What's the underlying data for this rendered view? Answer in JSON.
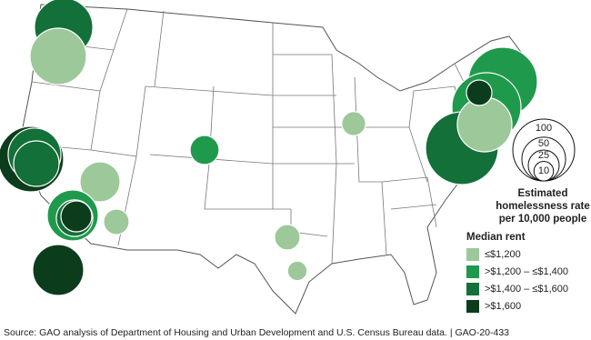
{
  "size_legend": {
    "values": [
      100,
      50,
      25,
      10
    ],
    "title": [
      "Estimated",
      "homelessness rate",
      "per 10,000 people"
    ]
  },
  "rent_legend": {
    "title": "Median rent",
    "items": [
      {
        "label": "≤$1,200",
        "color": "#9cc89a"
      },
      {
        "label": ">$1,200 – ≤$1,400",
        "color": "#1f9a4c"
      },
      {
        "label": ">$1,400 – ≤$1,600",
        "color": "#137038"
      },
      {
        "label": ">$1,600",
        "color": "#0b3d1c"
      }
    ]
  },
  "bubbles": [
    {
      "rate": 89,
      "rent": 2
    },
    {
      "rate": 83,
      "rent": 0
    },
    {
      "rate": 112,
      "rent": 3
    },
    {
      "rate": 73,
      "rent": 2
    },
    {
      "rate": 54,
      "rent": 2
    },
    {
      "rate": 42,
      "rent": 0
    },
    {
      "rate": 68,
      "rent": 1
    },
    {
      "rate": 35,
      "rent": 2
    },
    {
      "rate": 25,
      "rent": 3
    },
    {
      "rate": 17,
      "rent": 0
    },
    {
      "rate": 68,
      "rent": 3
    },
    {
      "rate": 22,
      "rent": 1
    },
    {
      "rate": 15,
      "rent": 0
    },
    {
      "rate": 17,
      "rent": 0
    },
    {
      "rate": 10,
      "rent": 0
    },
    {
      "rate": 125,
      "rent": 1
    },
    {
      "rate": 125,
      "rent": 1
    },
    {
      "rate": 138,
      "rent": 2
    },
    {
      "rate": 78,
      "rent": 0
    },
    {
      "rate": 17,
      "rent": 3
    }
  ],
  "source": "Source: GAO analysis of Department of Housing and Urban Development and U.S. Census Bureau data.  |  GAO-20-433"
}
